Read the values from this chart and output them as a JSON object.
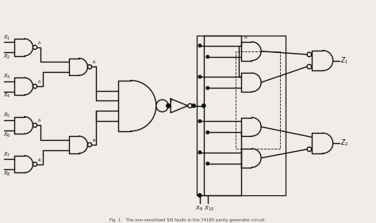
{
  "bg_color": "#f0ede8",
  "line_color": "#111111",
  "caption": "Fig. 1.   The non-sensitized SSI faults in the 74180 parity generator circuit.",
  "X_labels": [
    "X_1",
    "X_2",
    "X_3",
    "X_4",
    "X_5",
    "X_6",
    "X_7",
    "X_8"
  ],
  "X9_label": "X_9",
  "X10_label": "X_{10}",
  "Z1_label": "Z_1",
  "Z2_label": "Z_2",
  "l_labels": [
    "l_1",
    "l_2",
    "l_3",
    "l_4",
    "l_5",
    "l_7",
    "l_8",
    "l_9"
  ]
}
